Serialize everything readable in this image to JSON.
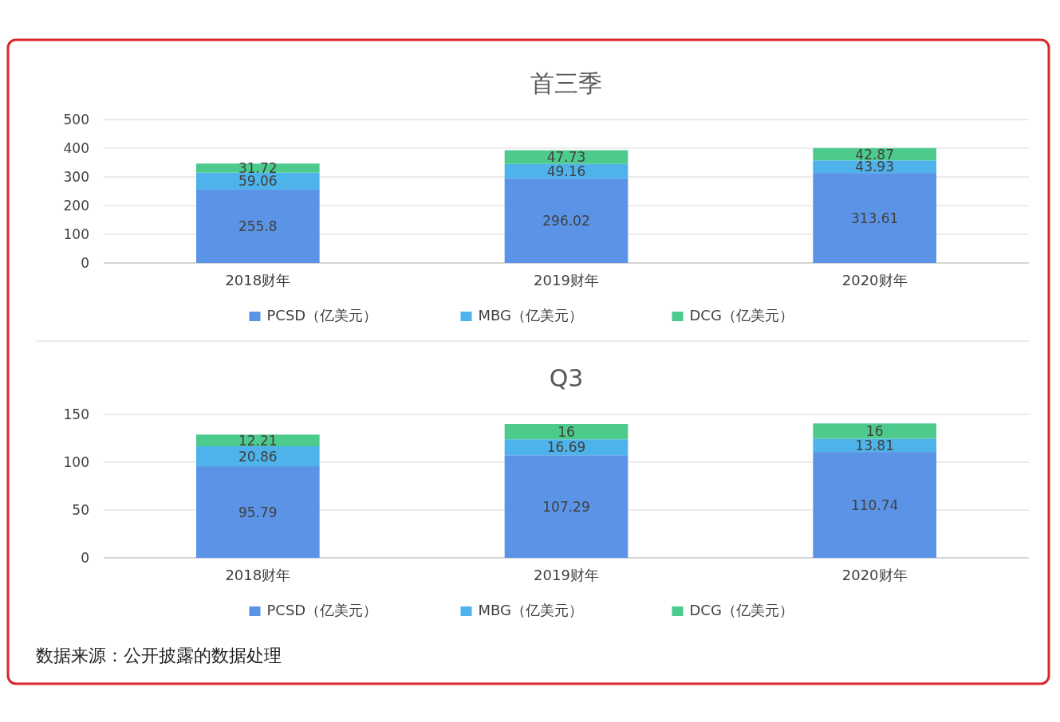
{
  "chart_data": [
    {
      "type": "bar",
      "title": "首三季",
      "stacked": true,
      "categories": [
        "2018财年",
        "2019财年",
        "2020财年"
      ],
      "series": [
        {
          "name": "PCSD（亿美元）",
          "color": "#5b94e6",
          "values": [
            255.8,
            296.02,
            313.61
          ]
        },
        {
          "name": "MBG（亿美元）",
          "color": "#4db3ea",
          "values": [
            59.06,
            49.16,
            43.93
          ]
        },
        {
          "name": "DCG（亿美元）",
          "color": "#4ccb8c",
          "values": [
            31.72,
            47.73,
            42.87
          ]
        }
      ],
      "ylim": [
        0,
        500
      ],
      "yticks": [
        0,
        100,
        200,
        300,
        400,
        500
      ],
      "grid": "y",
      "legend": "bottom",
      "data_labels": true
    },
    {
      "type": "bar",
      "title": "Q3",
      "stacked": true,
      "categories": [
        "2018财年",
        "2019财年",
        "2020财年"
      ],
      "series": [
        {
          "name": "PCSD（亿美元）",
          "color": "#5b94e6",
          "values": [
            95.79,
            107.29,
            110.74
          ]
        },
        {
          "name": "MBG（亿美元）",
          "color": "#4db3ea",
          "values": [
            20.86,
            16.69,
            13.81
          ]
        },
        {
          "name": "DCG（亿美元）",
          "color": "#4ccb8c",
          "values": [
            12.21,
            16,
            16
          ]
        }
      ],
      "ylim": [
        0,
        150
      ],
      "yticks": [
        0,
        50,
        100,
        150
      ],
      "grid": "y",
      "legend": "bottom",
      "data_labels": true,
      "annotations": [
        "数据来源：公开披露的数据处理"
      ]
    }
  ]
}
